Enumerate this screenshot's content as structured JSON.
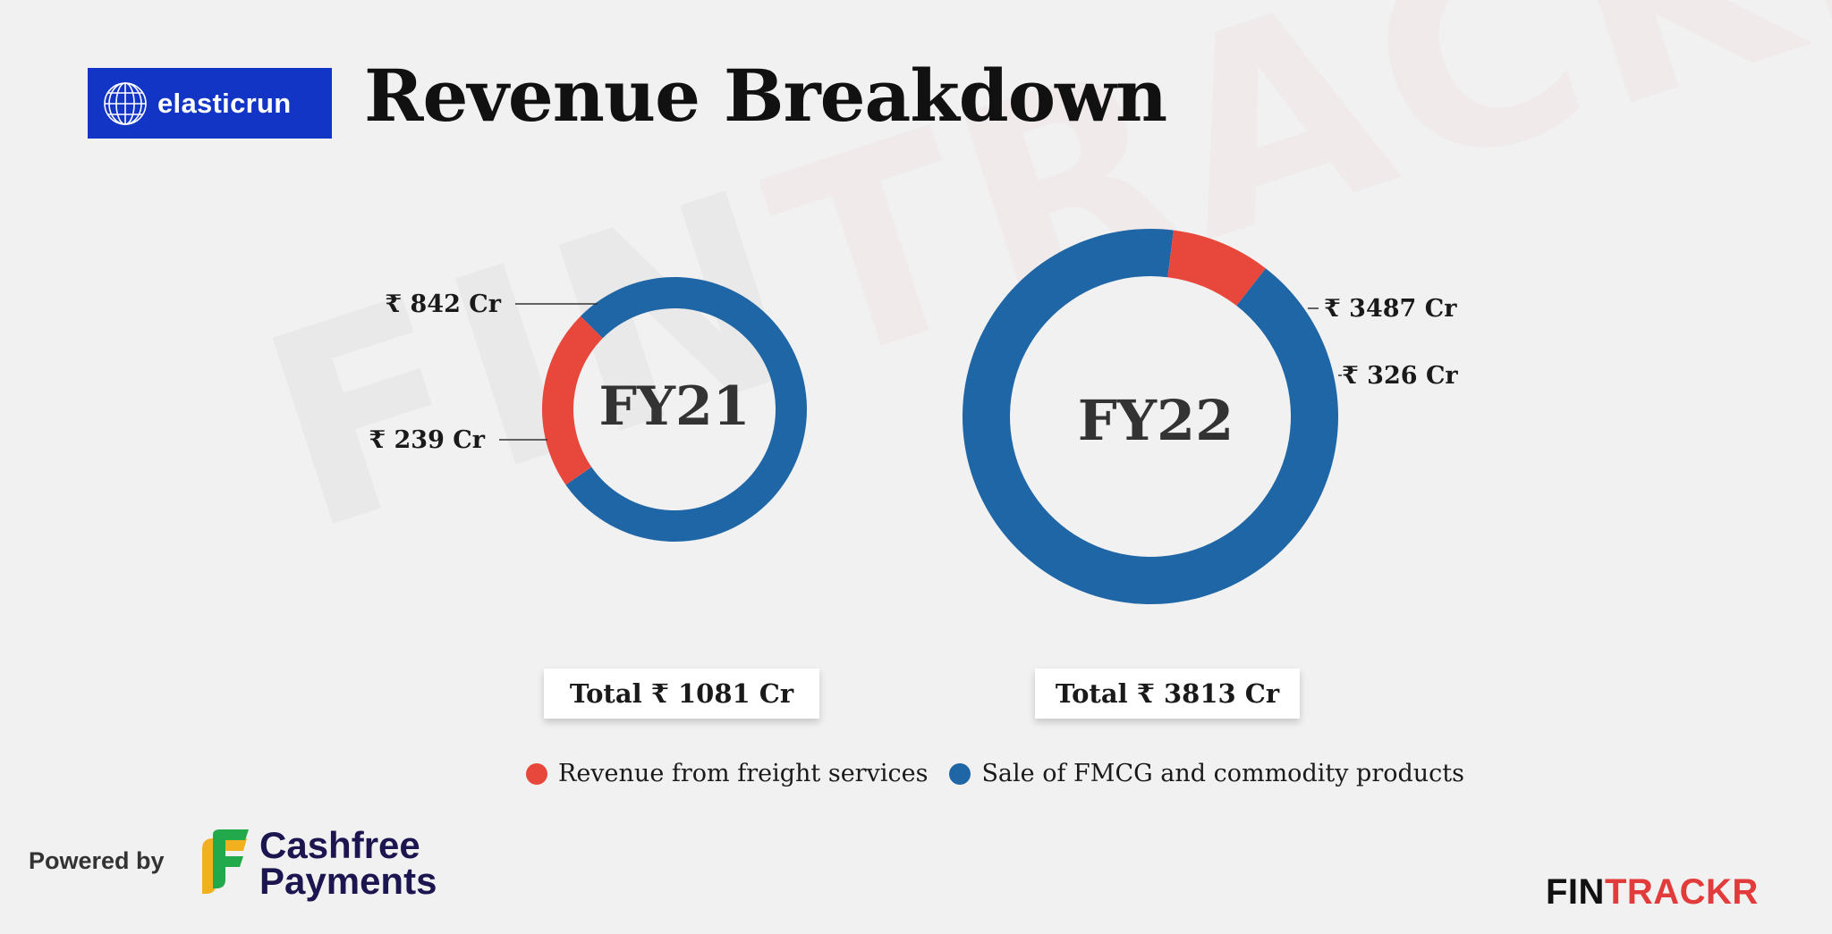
{
  "header": {
    "logo_text": "elasticrun",
    "title": "Revenue Breakdown"
  },
  "watermark": {
    "part1": "FIN",
    "part2": "TRACKR"
  },
  "chart_data": [
    {
      "type": "pie",
      "center_label": "FY21",
      "categories": [
        "Sale of FMCG and commodity products",
        "Revenue from freight services"
      ],
      "values": [
        842,
        239
      ],
      "value_labels": [
        "₹ 842 Cr",
        "₹ 239 Cr"
      ],
      "total_label": "Total ₹ 1081 Cr",
      "colors": [
        "#1f66a6",
        "#e8473b"
      ]
    },
    {
      "type": "pie",
      "center_label": "FY22",
      "categories": [
        "Sale of FMCG and commodity products",
        "Revenue from freight services"
      ],
      "values": [
        3487,
        326
      ],
      "value_labels": [
        "₹ 3487 Cr",
        "₹ 326 Cr"
      ],
      "total_label": "Total ₹ 3813 Cr",
      "colors": [
        "#1f66a6",
        "#e8473b"
      ]
    }
  ],
  "legend": [
    {
      "label": "Revenue from freight services",
      "color": "#e8473b"
    },
    {
      "label": "Sale of FMCG and commodity products",
      "color": "#1f66a6"
    }
  ],
  "footer": {
    "powered_by": "Powered by",
    "cashfree_line1": "Cashfree",
    "cashfree_line2": "Payments",
    "brand_part1": "FIN",
    "brand_part2": "TRACKR"
  }
}
